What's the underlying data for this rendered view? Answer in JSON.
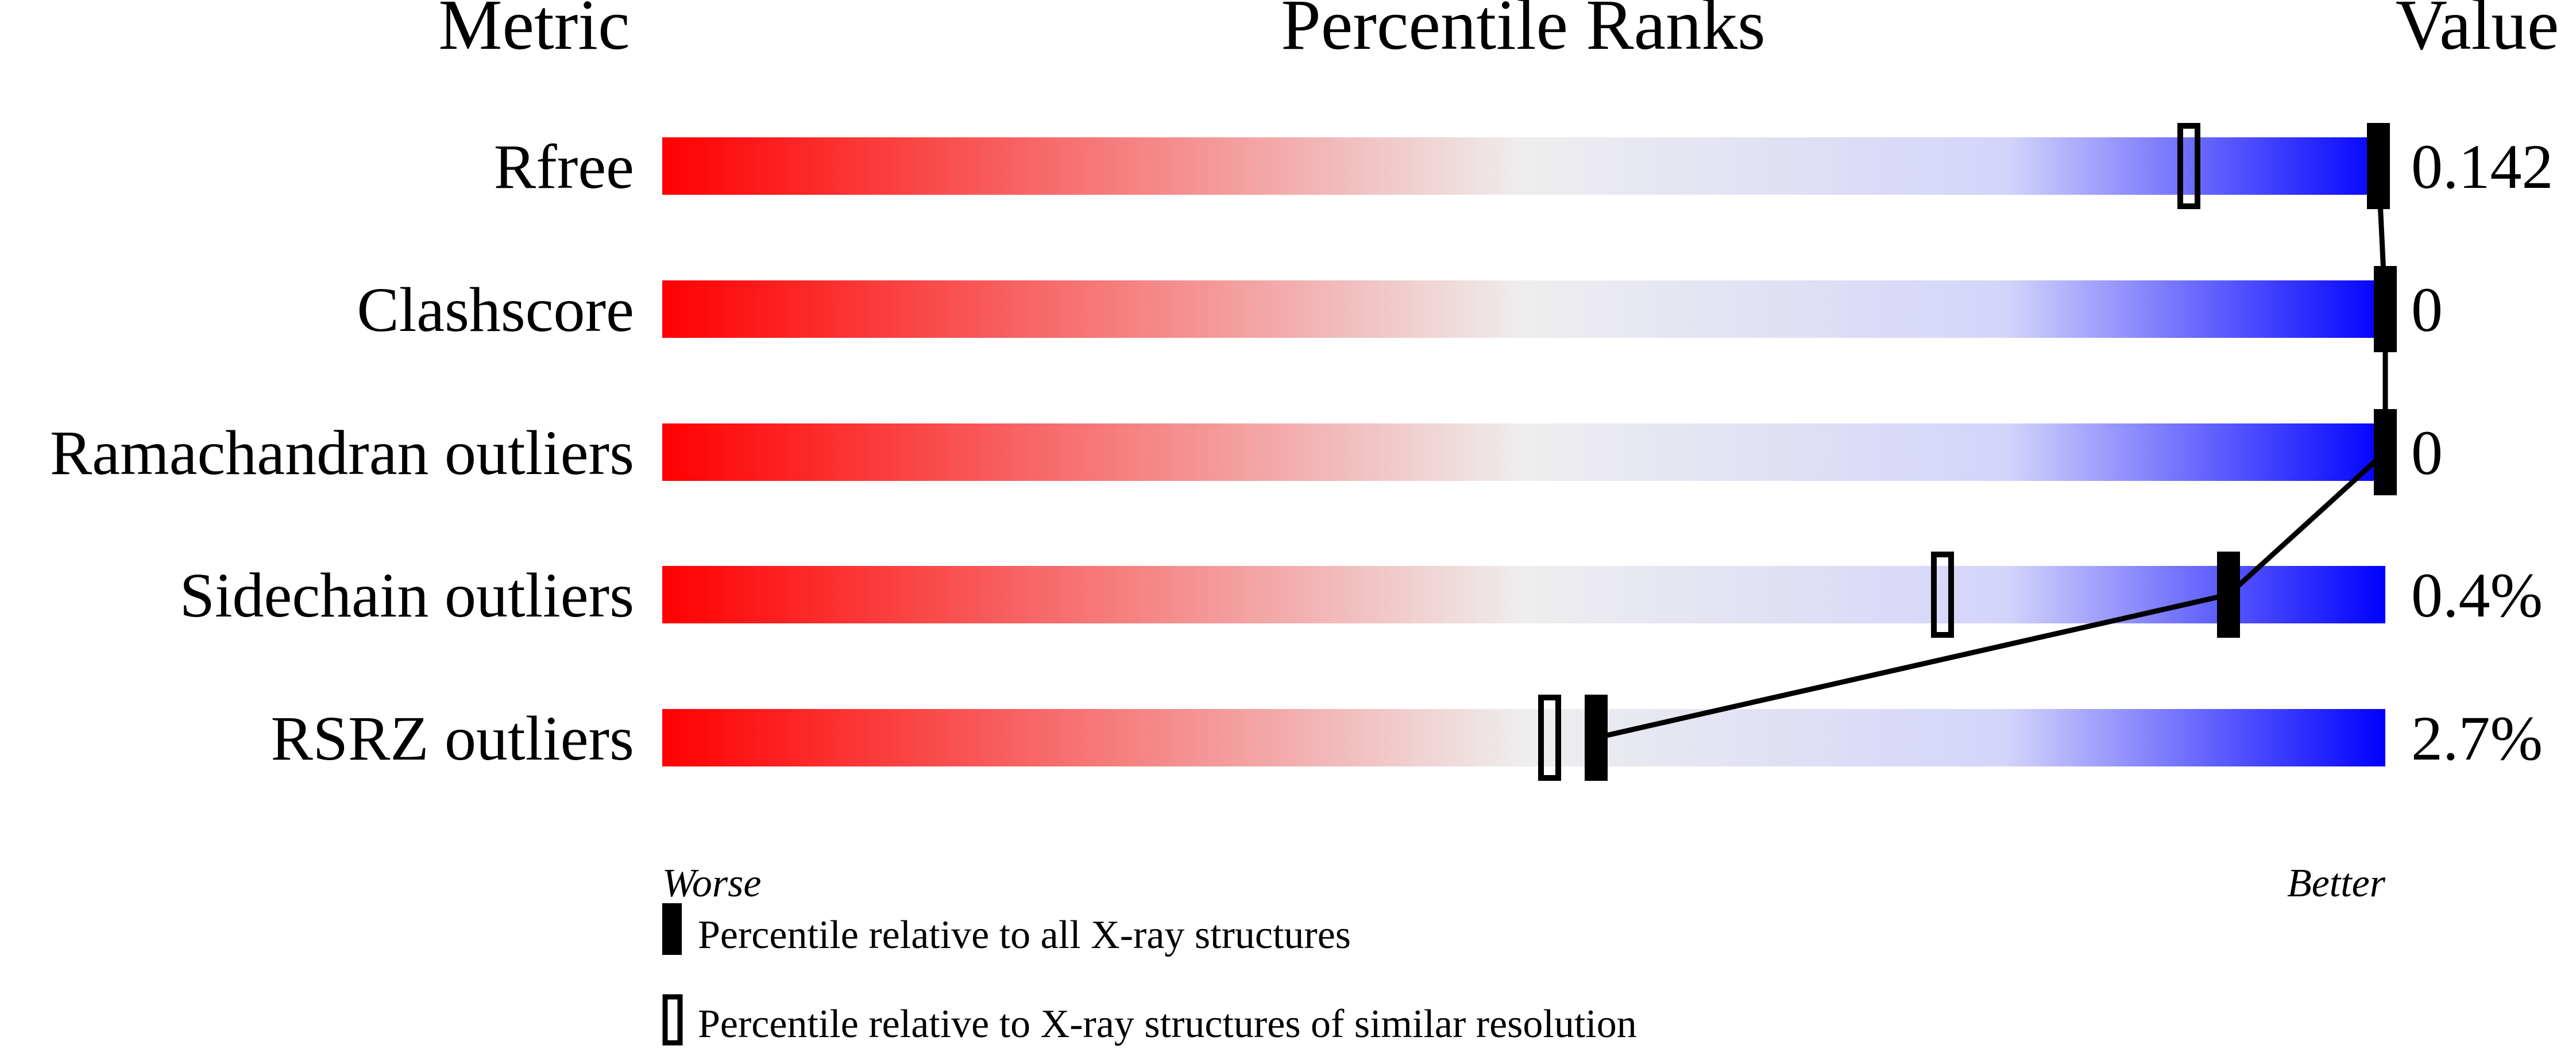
{
  "chart_data": {
    "type": "percentile-slider",
    "headers": {
      "metric": "Metric",
      "ranks": "Percentile Ranks",
      "value": "Value"
    },
    "xlim": [
      0,
      100
    ],
    "axis_left_label": "Worse",
    "axis_right_label": "Better",
    "colors": {
      "worse": "#ff0000",
      "middle": "#eeeeee",
      "better": "#0000ff",
      "marker": "#000000"
    },
    "rows": [
      {
        "metric": "Rfree",
        "value": "0.142",
        "percentile_all": 99.6,
        "percentile_similar": 88.6
      },
      {
        "metric": "Clashscore",
        "value": "0",
        "percentile_all": 100,
        "percentile_similar": 100
      },
      {
        "metric": "Ramachandran outliers",
        "value": "0",
        "percentile_all": 100,
        "percentile_similar": 100
      },
      {
        "metric": "Sidechain outliers",
        "value": "0.4%",
        "percentile_all": 90.9,
        "percentile_similar": 74.3
      },
      {
        "metric": "RSRZ outliers",
        "value": "2.7%",
        "percentile_all": 54.2,
        "percentile_similar": 51.5
      }
    ],
    "legend": [
      {
        "marker": "filled",
        "label": "Percentile relative to all X-ray structures"
      },
      {
        "marker": "open",
        "label": "Percentile relative to X-ray structures of similar resolution"
      }
    ]
  }
}
